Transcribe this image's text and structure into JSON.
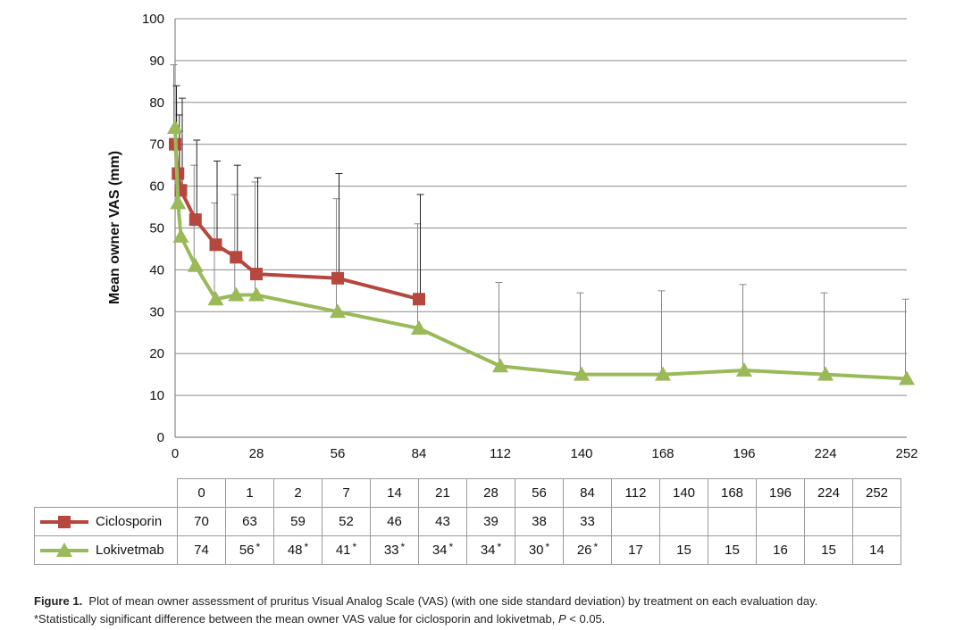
{
  "chart_data": {
    "type": "line",
    "title": "",
    "xlabel": "",
    "ylabel": "Mean owner VAS (mm)",
    "xlim": [
      0,
      252
    ],
    "ylim": [
      0,
      100
    ],
    "x_ticks": [
      0,
      28,
      56,
      84,
      112,
      140,
      168,
      196,
      224,
      252
    ],
    "y_ticks": [
      0,
      10,
      20,
      30,
      40,
      50,
      60,
      70,
      80,
      90,
      100
    ],
    "grid": "horizontal",
    "legend": "in data table",
    "series": [
      {
        "name": "Ciclosporin",
        "color": "#b5473f",
        "marker": "square",
        "x": [
          0,
          1,
          2,
          7,
          14,
          21,
          28,
          56,
          84
        ],
        "values": [
          70,
          63,
          59,
          52,
          46,
          43,
          39,
          38,
          33
        ],
        "sd_upper": [
          84,
          77,
          81,
          71,
          66,
          65,
          62,
          63,
          58
        ]
      },
      {
        "name": "Lokivetmab",
        "color": "#9aba59",
        "marker": "triangle",
        "x": [
          0,
          1,
          2,
          7,
          14,
          21,
          28,
          56,
          84,
          112,
          140,
          168,
          196,
          224,
          252
        ],
        "values": [
          74,
          56,
          48,
          41,
          33,
          34,
          34,
          30,
          26,
          17,
          15,
          15,
          16,
          15,
          14
        ],
        "sd_upper": [
          89,
          80,
          73,
          65,
          56,
          58,
          61,
          57,
          51,
          37,
          34.5,
          35,
          36.5,
          34.5,
          33
        ]
      }
    ]
  },
  "table": {
    "days": [
      "0",
      "1",
      "2",
      "7",
      "14",
      "21",
      "28",
      "56",
      "84",
      "112",
      "140",
      "168",
      "196",
      "224",
      "252"
    ],
    "rows": [
      {
        "label": "Ciclosporin",
        "marker": "square",
        "color": "#b5473f",
        "values": [
          "70",
          "63",
          "59",
          "52",
          "46",
          "43",
          "39",
          "38",
          "33",
          "",
          "",
          "",
          "",
          "",
          ""
        ],
        "significant": [
          false,
          false,
          false,
          false,
          false,
          false,
          false,
          false,
          false,
          false,
          false,
          false,
          false,
          false,
          false
        ]
      },
      {
        "label": "Lokivetmab",
        "marker": "triangle",
        "color": "#9aba59",
        "values": [
          "74",
          "56",
          "48",
          "41",
          "33",
          "34",
          "34",
          "30",
          "26",
          "17",
          "15",
          "15",
          "16",
          "15",
          "14"
        ],
        "significant": [
          false,
          true,
          true,
          true,
          true,
          true,
          true,
          true,
          true,
          false,
          false,
          false,
          false,
          false,
          false
        ]
      }
    ],
    "significance_mark": "*"
  },
  "caption": {
    "label": "Figure 1.",
    "line1": "Plot of mean owner assessment of pruritus Visual Analog Scale (VAS) (with one side standard deviation) by treatment on each evaluation day.",
    "line2_prefix": "*Statistically significant difference between the mean owner VAS value for ciclosporin and lokivetmab, ",
    "line2_italic": "P",
    "line2_suffix": " < 0.05."
  }
}
